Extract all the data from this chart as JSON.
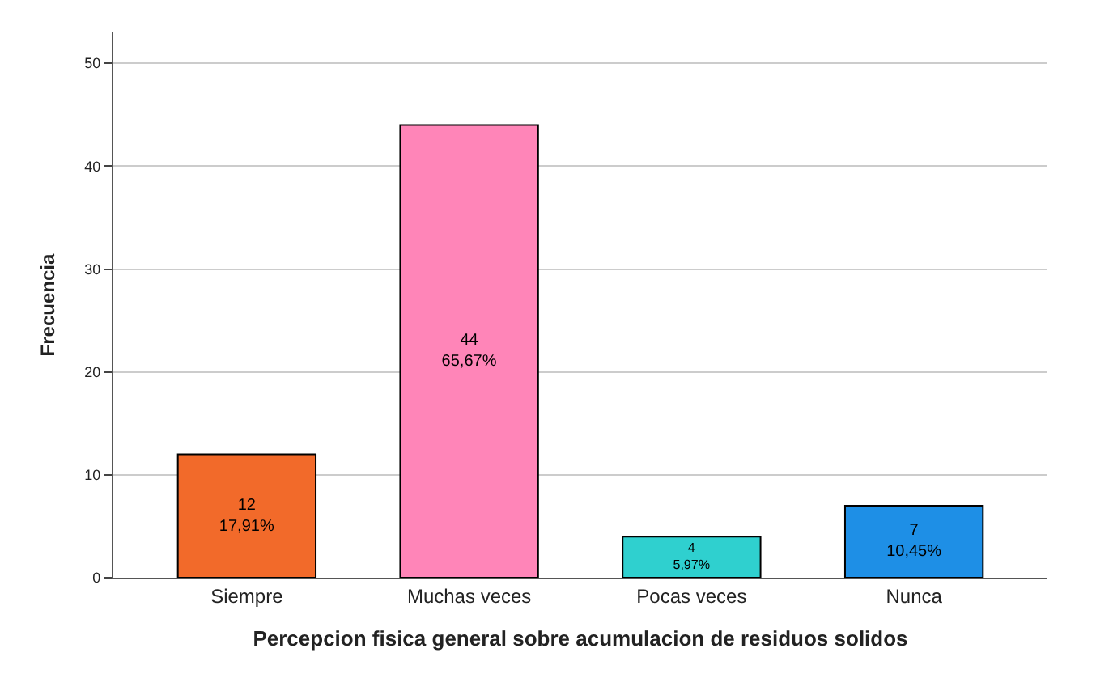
{
  "chart_data": {
    "type": "bar",
    "xlabel": "Percepcion fisica general sobre acumulacion de residuos solidos",
    "ylabel": "Frecuencia",
    "categories": [
      "Siempre",
      "Muchas veces",
      "Pocas veces",
      "Nunca"
    ],
    "values": [
      12,
      44,
      4,
      7
    ],
    "colors": [
      "#f26a2a",
      "#ff85b8",
      "#2fd0cf",
      "#1e8fe6"
    ],
    "value_labels": [
      "12\n17,91%",
      "44\n65,67%",
      "4\n5,97%",
      "7\n10,45%"
    ],
    "ylim": [
      0,
      53
    ],
    "yticks": [
      0,
      10,
      20,
      30,
      40,
      50
    ],
    "grid": "y"
  }
}
